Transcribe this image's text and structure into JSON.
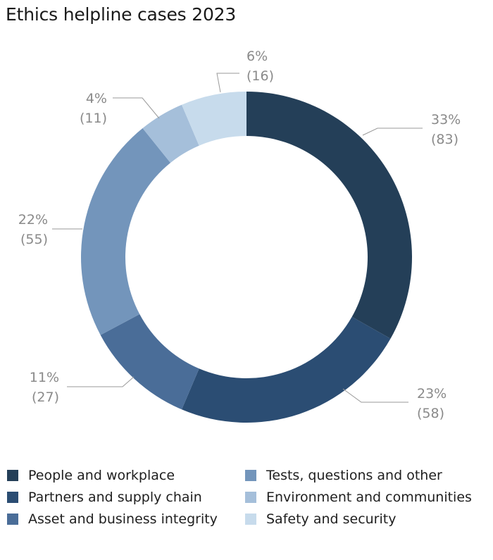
{
  "title": "Ethics helpline cases 2023",
  "chart_data": {
    "type": "pie",
    "style": "donut",
    "title": "Ethics helpline cases 2023",
    "slices": [
      {
        "label": "People and workplace",
        "percent": 33,
        "count": 83,
        "color": "#243f58"
      },
      {
        "label": "Partners and supply chain",
        "percent": 23,
        "count": 58,
        "color": "#2b4d73"
      },
      {
        "label": "Asset and business integrity",
        "percent": 11,
        "count": 27,
        "color": "#4a6d98"
      },
      {
        "label": "Tests, questions and other",
        "percent": 22,
        "count": 55,
        "color": "#7395bb"
      },
      {
        "label": "Environment and communities",
        "percent": 4,
        "count": 11,
        "color": "#a5bfda"
      },
      {
        "label": "Safety and security",
        "percent": 6,
        "count": 16,
        "color": "#c7dbec"
      }
    ],
    "data_labels": [
      {
        "percent": "33%",
        "count": "(83)"
      },
      {
        "percent": "23%",
        "count": "(58)"
      },
      {
        "percent": "11%",
        "count": "(27)"
      },
      {
        "percent": "22%",
        "count": "(55)"
      },
      {
        "percent": "4%",
        "count": "(11)"
      },
      {
        "percent": "6%",
        "count": "(16)"
      }
    ],
    "legend_placement": "bottom"
  },
  "legend": [
    {
      "label": "People and workplace",
      "color": "#243f58"
    },
    {
      "label": "Partners and supply chain",
      "color": "#2b4d73"
    },
    {
      "label": "Asset and business integrity",
      "color": "#4a6d98"
    },
    {
      "label": "Tests, questions and other",
      "color": "#7395bb"
    },
    {
      "label": "Environment and communities",
      "color": "#a5bfda"
    },
    {
      "label": "Safety and security",
      "color": "#c7dbec"
    }
  ]
}
